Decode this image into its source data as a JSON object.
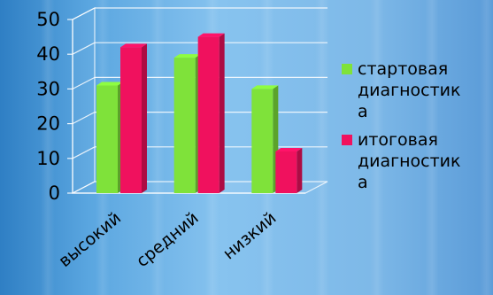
{
  "chart_data": {
    "type": "bar",
    "categories": [
      "высокий",
      "средний",
      "низкий"
    ],
    "series": [
      {
        "name": "стартовая диагностика",
        "legend_lines": [
          "стартовая",
          "диагностик",
          "а"
        ],
        "values": [
          31,
          39,
          30
        ],
        "color": "#7fe23a"
      },
      {
        "name": "итоговая диагностика",
        "legend_lines": [
          "итоговая",
          "диагностик",
          "а"
        ],
        "values": [
          42,
          45,
          12
        ],
        "color": "#f0115e"
      }
    ],
    "ylim": [
      0,
      50
    ],
    "yticks": [
      0,
      10,
      20,
      30,
      40,
      50
    ],
    "grid": true,
    "legend_position": "right",
    "title": "",
    "xlabel": "",
    "ylabel": ""
  }
}
